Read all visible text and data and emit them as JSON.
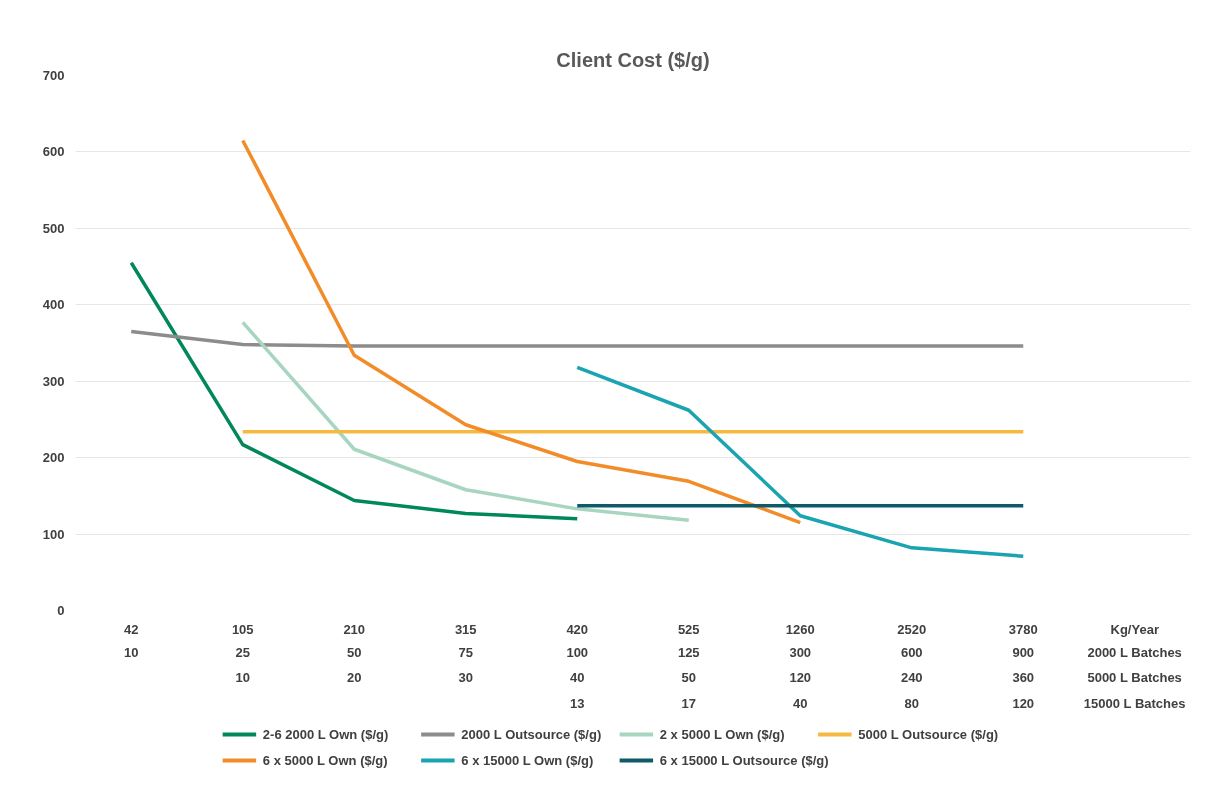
{
  "chart_data": {
    "type": "line",
    "title": "Client Cost ($/g)",
    "xlabel": "Kg/Year",
    "categories": [
      "42",
      "105",
      "210",
      "315",
      "420",
      "525",
      "1260",
      "2520",
      "3780"
    ],
    "ylim": [
      0,
      700
    ],
    "yticks": [
      0,
      100,
      200,
      300,
      400,
      500,
      600,
      700
    ],
    "grid": "y",
    "legend": "bottom",
    "line_style": "solid",
    "marker": "none",
    "series": [
      {
        "name": "2-6 2000 L Own ($/g)",
        "color": "#00875a",
        "values": [
          455,
          217,
          144,
          127,
          120,
          null,
          null,
          null,
          null
        ]
      },
      {
        "name": "2000 L Outsource ($/g)",
        "color": "#8c8c8c",
        "values": [
          365,
          348,
          346,
          346,
          346,
          346,
          346,
          346,
          346
        ]
      },
      {
        "name": "2 x 5000 L Own ($/g)",
        "color": "#a8d5bf",
        "values": [
          null,
          377,
          211,
          158,
          133,
          118,
          null,
          null,
          null
        ]
      },
      {
        "name": "5000 L Outsource ($/g)",
        "color": "#f5b942",
        "values": [
          null,
          234,
          234,
          234,
          234,
          234,
          234,
          234,
          234
        ]
      },
      {
        "name": "6 x 5000 L Own ($/g)",
        "color": "#f28c28",
        "values": [
          null,
          615,
          334,
          243,
          195,
          169,
          115,
          null,
          null
        ]
      },
      {
        "name": "6 x 15000 L Own ($/g)",
        "color": "#1aa3b0",
        "values": [
          null,
          null,
          null,
          null,
          318,
          262,
          124,
          82,
          71
        ]
      },
      {
        "name": "6 x 15000 L Outsource ($/g)",
        "color": "#0e5a66",
        "values": [
          null,
          null,
          null,
          null,
          137,
          137,
          137,
          137,
          137
        ]
      }
    ],
    "annotations": [
      "2000 L Batches",
      "10",
      "25",
      "50",
      "75",
      "100",
      "125",
      "300",
      "600",
      "900",
      "5000 L Batches",
      "10",
      "20",
      "30",
      "40",
      "50",
      "120",
      "240",
      "360",
      "15000 L Batches",
      "13",
      "17",
      "40",
      "80",
      "120"
    ]
  }
}
